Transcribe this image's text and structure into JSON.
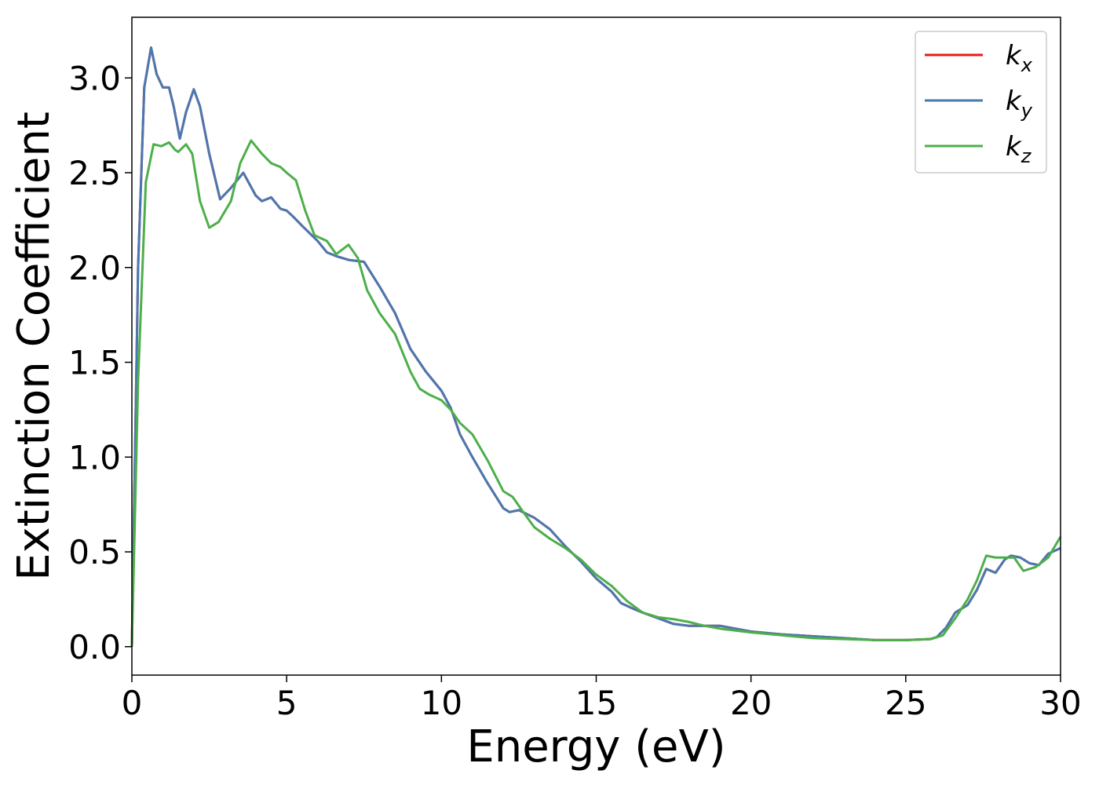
{
  "chart_data": {
    "type": "line",
    "title": "",
    "xlabel": "Energy (eV)",
    "ylabel": "Extinction Coefficient",
    "xlim": [
      0,
      30
    ],
    "ylim": [
      -0.15,
      3.32
    ],
    "xticks": [
      0,
      5,
      10,
      15,
      20,
      25,
      30
    ],
    "xtick_labels": [
      "0",
      "5",
      "10",
      "15",
      "20",
      "25",
      "30"
    ],
    "yticks": [
      0.0,
      0.5,
      1.0,
      1.5,
      2.0,
      2.5,
      3.0
    ],
    "ytick_labels": [
      "0.0",
      "0.5",
      "1.0",
      "1.5",
      "2.0",
      "2.5",
      "3.0"
    ],
    "grid": false,
    "legend_position": "top-right",
    "series": [
      {
        "name": "k_x",
        "legend": {
          "base": "k",
          "sub": "x"
        },
        "color": "#e41a1c",
        "points": [
          [
            0,
            0
          ],
          [
            0.2,
            2.0
          ],
          [
            0.4,
            2.95
          ],
          [
            0.62,
            3.16
          ],
          [
            0.8,
            3.02
          ],
          [
            1.0,
            2.95
          ],
          [
            1.2,
            2.95
          ],
          [
            1.35,
            2.85
          ],
          [
            1.55,
            2.68
          ],
          [
            1.75,
            2.82
          ],
          [
            2.0,
            2.94
          ],
          [
            2.2,
            2.85
          ],
          [
            2.5,
            2.6
          ],
          [
            2.85,
            2.36
          ],
          [
            3.2,
            2.42
          ],
          [
            3.6,
            2.5
          ],
          [
            4.0,
            2.38
          ],
          [
            4.2,
            2.35
          ],
          [
            4.5,
            2.37
          ],
          [
            4.8,
            2.31
          ],
          [
            5.0,
            2.3
          ],
          [
            5.2,
            2.27
          ],
          [
            5.5,
            2.22
          ],
          [
            6.0,
            2.14
          ],
          [
            6.3,
            2.08
          ],
          [
            6.6,
            2.06
          ],
          [
            7.0,
            2.04
          ],
          [
            7.5,
            2.03
          ],
          [
            8.0,
            1.9
          ],
          [
            8.5,
            1.76
          ],
          [
            9.0,
            1.57
          ],
          [
            9.5,
            1.45
          ],
          [
            10.0,
            1.35
          ],
          [
            10.3,
            1.26
          ],
          [
            10.6,
            1.12
          ],
          [
            11.0,
            1.0
          ],
          [
            11.5,
            0.86
          ],
          [
            12.0,
            0.73
          ],
          [
            12.2,
            0.71
          ],
          [
            12.5,
            0.72
          ],
          [
            13.0,
            0.68
          ],
          [
            13.5,
            0.62
          ],
          [
            14.0,
            0.53
          ],
          [
            14.5,
            0.45
          ],
          [
            15.0,
            0.36
          ],
          [
            15.5,
            0.29
          ],
          [
            15.8,
            0.23
          ],
          [
            16.2,
            0.2
          ],
          [
            16.5,
            0.18
          ],
          [
            17.0,
            0.15
          ],
          [
            17.5,
            0.12
          ],
          [
            18.0,
            0.11
          ],
          [
            19.0,
            0.11
          ],
          [
            20.0,
            0.08
          ],
          [
            21.0,
            0.065
          ],
          [
            22.0,
            0.055
          ],
          [
            23.0,
            0.045
          ],
          [
            24.0,
            0.035
          ],
          [
            25.0,
            0.035
          ],
          [
            25.8,
            0.04
          ],
          [
            26.0,
            0.05
          ],
          [
            26.3,
            0.1
          ],
          [
            26.6,
            0.18
          ],
          [
            27.0,
            0.22
          ],
          [
            27.3,
            0.3
          ],
          [
            27.6,
            0.41
          ],
          [
            27.9,
            0.39
          ],
          [
            28.2,
            0.46
          ],
          [
            28.4,
            0.48
          ],
          [
            28.7,
            0.47
          ],
          [
            29.0,
            0.44
          ],
          [
            29.3,
            0.43
          ],
          [
            29.6,
            0.49
          ],
          [
            30.0,
            0.52
          ]
        ]
      },
      {
        "name": "k_y",
        "legend": {
          "base": "k",
          "sub": "y"
        },
        "color": "#4a78b0",
        "points": [
          [
            0,
            0
          ],
          [
            0.2,
            2.0
          ],
          [
            0.4,
            2.95
          ],
          [
            0.62,
            3.16
          ],
          [
            0.8,
            3.02
          ],
          [
            1.0,
            2.95
          ],
          [
            1.2,
            2.95
          ],
          [
            1.35,
            2.85
          ],
          [
            1.55,
            2.68
          ],
          [
            1.75,
            2.82
          ],
          [
            2.0,
            2.94
          ],
          [
            2.2,
            2.85
          ],
          [
            2.5,
            2.6
          ],
          [
            2.85,
            2.36
          ],
          [
            3.2,
            2.42
          ],
          [
            3.6,
            2.5
          ],
          [
            4.0,
            2.38
          ],
          [
            4.2,
            2.35
          ],
          [
            4.5,
            2.37
          ],
          [
            4.8,
            2.31
          ],
          [
            5.0,
            2.3
          ],
          [
            5.2,
            2.27
          ],
          [
            5.5,
            2.22
          ],
          [
            6.0,
            2.14
          ],
          [
            6.3,
            2.08
          ],
          [
            6.6,
            2.06
          ],
          [
            7.0,
            2.04
          ],
          [
            7.5,
            2.03
          ],
          [
            8.0,
            1.9
          ],
          [
            8.5,
            1.76
          ],
          [
            9.0,
            1.57
          ],
          [
            9.5,
            1.45
          ],
          [
            10.0,
            1.35
          ],
          [
            10.3,
            1.26
          ],
          [
            10.6,
            1.12
          ],
          [
            11.0,
            1.0
          ],
          [
            11.5,
            0.86
          ],
          [
            12.0,
            0.73
          ],
          [
            12.2,
            0.71
          ],
          [
            12.5,
            0.72
          ],
          [
            13.0,
            0.68
          ],
          [
            13.5,
            0.62
          ],
          [
            14.0,
            0.53
          ],
          [
            14.5,
            0.45
          ],
          [
            15.0,
            0.36
          ],
          [
            15.5,
            0.29
          ],
          [
            15.8,
            0.23
          ],
          [
            16.2,
            0.2
          ],
          [
            16.5,
            0.18
          ],
          [
            17.0,
            0.15
          ],
          [
            17.5,
            0.12
          ],
          [
            18.0,
            0.11
          ],
          [
            19.0,
            0.11
          ],
          [
            20.0,
            0.08
          ],
          [
            21.0,
            0.065
          ],
          [
            22.0,
            0.055
          ],
          [
            23.0,
            0.045
          ],
          [
            24.0,
            0.035
          ],
          [
            25.0,
            0.035
          ],
          [
            25.8,
            0.04
          ],
          [
            26.0,
            0.05
          ],
          [
            26.3,
            0.1
          ],
          [
            26.6,
            0.18
          ],
          [
            27.0,
            0.22
          ],
          [
            27.3,
            0.3
          ],
          [
            27.6,
            0.41
          ],
          [
            27.9,
            0.39
          ],
          [
            28.2,
            0.46
          ],
          [
            28.4,
            0.48
          ],
          [
            28.7,
            0.47
          ],
          [
            29.0,
            0.44
          ],
          [
            29.3,
            0.43
          ],
          [
            29.6,
            0.49
          ],
          [
            30.0,
            0.52
          ]
        ]
      },
      {
        "name": "k_z",
        "legend": {
          "base": "k",
          "sub": "z"
        },
        "color": "#4daf4a",
        "points": [
          [
            0,
            0
          ],
          [
            0.2,
            1.4
          ],
          [
            0.45,
            2.45
          ],
          [
            0.7,
            2.65
          ],
          [
            0.95,
            2.64
          ],
          [
            1.2,
            2.66
          ],
          [
            1.4,
            2.62
          ],
          [
            1.5,
            2.61
          ],
          [
            1.75,
            2.65
          ],
          [
            1.95,
            2.6
          ],
          [
            2.2,
            2.35
          ],
          [
            2.5,
            2.21
          ],
          [
            2.8,
            2.24
          ],
          [
            3.2,
            2.35
          ],
          [
            3.5,
            2.55
          ],
          [
            3.85,
            2.67
          ],
          [
            4.2,
            2.6
          ],
          [
            4.5,
            2.55
          ],
          [
            4.8,
            2.53
          ],
          [
            5.0,
            2.5
          ],
          [
            5.3,
            2.46
          ],
          [
            5.6,
            2.3
          ],
          [
            5.9,
            2.17
          ],
          [
            6.3,
            2.14
          ],
          [
            6.6,
            2.07
          ],
          [
            7.0,
            2.12
          ],
          [
            7.3,
            2.05
          ],
          [
            7.6,
            1.88
          ],
          [
            8.0,
            1.76
          ],
          [
            8.5,
            1.65
          ],
          [
            9.0,
            1.45
          ],
          [
            9.3,
            1.36
          ],
          [
            9.6,
            1.33
          ],
          [
            10.0,
            1.3
          ],
          [
            10.3,
            1.25
          ],
          [
            10.6,
            1.18
          ],
          [
            11.0,
            1.12
          ],
          [
            11.5,
            0.98
          ],
          [
            12.0,
            0.82
          ],
          [
            12.3,
            0.79
          ],
          [
            12.6,
            0.72
          ],
          [
            13.0,
            0.63
          ],
          [
            13.5,
            0.57
          ],
          [
            14.0,
            0.52
          ],
          [
            14.5,
            0.46
          ],
          [
            15.0,
            0.38
          ],
          [
            15.5,
            0.32
          ],
          [
            16.0,
            0.24
          ],
          [
            16.5,
            0.18
          ],
          [
            17.0,
            0.155
          ],
          [
            17.5,
            0.145
          ],
          [
            18.0,
            0.13
          ],
          [
            18.5,
            0.11
          ],
          [
            19.0,
            0.095
          ],
          [
            20.0,
            0.075
          ],
          [
            21.0,
            0.06
          ],
          [
            22.0,
            0.045
          ],
          [
            23.0,
            0.04
          ],
          [
            24.0,
            0.035
          ],
          [
            25.0,
            0.035
          ],
          [
            25.8,
            0.04
          ],
          [
            26.2,
            0.06
          ],
          [
            26.6,
            0.15
          ],
          [
            27.0,
            0.25
          ],
          [
            27.3,
            0.35
          ],
          [
            27.6,
            0.48
          ],
          [
            27.9,
            0.47
          ],
          [
            28.2,
            0.47
          ],
          [
            28.5,
            0.47
          ],
          [
            28.8,
            0.4
          ],
          [
            29.2,
            0.42
          ],
          [
            29.6,
            0.47
          ],
          [
            30.0,
            0.58
          ]
        ]
      }
    ]
  }
}
